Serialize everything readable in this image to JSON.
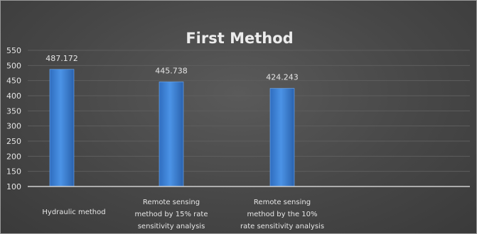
{
  "chart_data": {
    "type": "bar",
    "title": "First Method",
    "xlabel": "",
    "ylabel": "",
    "ylim": [
      100,
      550
    ],
    "yticks": [
      100,
      150,
      200,
      250,
      300,
      350,
      400,
      450,
      500,
      550
    ],
    "grid": true,
    "legend": "none",
    "bar_color": "#3a7fd5",
    "categories": [
      [
        "Hydraulic method"
      ],
      [
        "Remote sensing",
        "method by 15% rate",
        "sensitivity analysis"
      ],
      [
        "Remote sensing",
        "method by the 10%",
        "rate sensitivity analysis"
      ]
    ],
    "values": [
      487.172,
      445.738,
      424.243
    ],
    "value_labels": [
      "487.172",
      "445.738",
      "424.243"
    ]
  }
}
